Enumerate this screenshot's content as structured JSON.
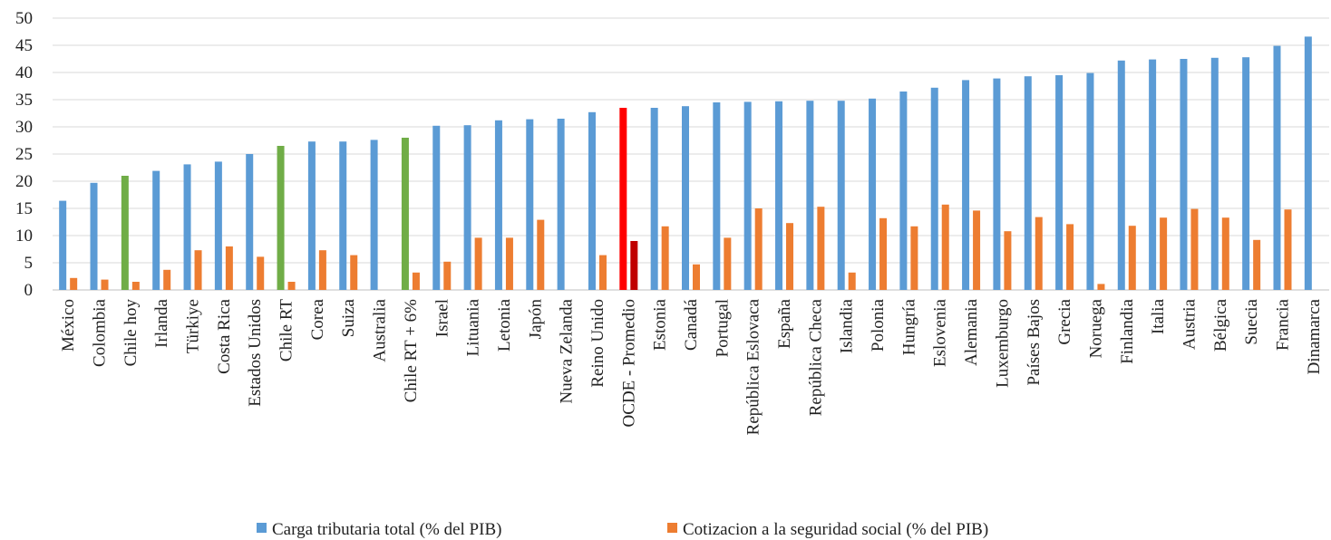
{
  "chart_data": {
    "type": "bar",
    "ylim": [
      0,
      50
    ],
    "y_ticks": [
      0,
      5,
      10,
      15,
      20,
      25,
      30,
      35,
      40,
      45,
      50
    ],
    "grid": true,
    "legend_position": "bottom",
    "categories": [
      "México",
      "Colombia",
      "Chile hoy",
      "Irlanda",
      "Türkiye",
      "Costa Rica",
      "Estados Unidos",
      "Chile RT",
      "Corea",
      "Suiza",
      "Australia",
      "Chile RT + 6%",
      "Israel",
      "Lituania",
      "Letonia",
      "Japón",
      "Nueva Zelanda",
      "Reino Unido",
      "OCDE - Promedio",
      "Estonia",
      "Canadá",
      "Portugal",
      "República Eslovaca",
      "España",
      "República Checa",
      "Islandia",
      "Polonia",
      "Hungría",
      "Eslovenia",
      "Alemania",
      "Luxemburgo",
      "Países Bajos",
      "Grecia",
      "Noruega",
      "Finlandia",
      "Italia",
      "Austria",
      "Bélgica",
      "Suecia",
      "Francia",
      "Dinamarca"
    ],
    "series": [
      {
        "name": "Carga tributaria total (% del PIB)",
        "color": "#5b9bd5",
        "values": [
          16.4,
          19.7,
          21.0,
          21.9,
          23.1,
          23.6,
          25.0,
          26.5,
          27.3,
          27.3,
          27.6,
          28.0,
          30.2,
          30.3,
          31.2,
          31.4,
          31.5,
          32.7,
          33.5,
          33.5,
          33.8,
          34.5,
          34.6,
          34.7,
          34.8,
          34.8,
          35.2,
          36.5,
          37.2,
          38.6,
          38.9,
          39.3,
          39.5,
          39.9,
          42.2,
          42.4,
          42.5,
          42.7,
          42.8,
          44.9,
          46.6
        ]
      },
      {
        "name": "Cotizacion a la seguridad social (% del PIB)",
        "color": "#ed7d31",
        "values": [
          2.2,
          1.9,
          1.5,
          3.7,
          7.3,
          8.0,
          6.1,
          1.5,
          7.3,
          6.4,
          null,
          3.2,
          5.2,
          9.6,
          9.6,
          12.9,
          null,
          6.4,
          9.0,
          11.7,
          4.7,
          9.6,
          15.0,
          12.3,
          15.3,
          3.2,
          13.2,
          11.7,
          15.7,
          14.6,
          10.8,
          13.4,
          12.1,
          1.1,
          11.8,
          13.3,
          14.9,
          13.3,
          9.2,
          14.8,
          null
        ]
      }
    ],
    "highlight_colors": {
      "chile_total": "#70ad47",
      "ocde_total": "#ff0000",
      "ocde_social": "#c00000"
    }
  }
}
